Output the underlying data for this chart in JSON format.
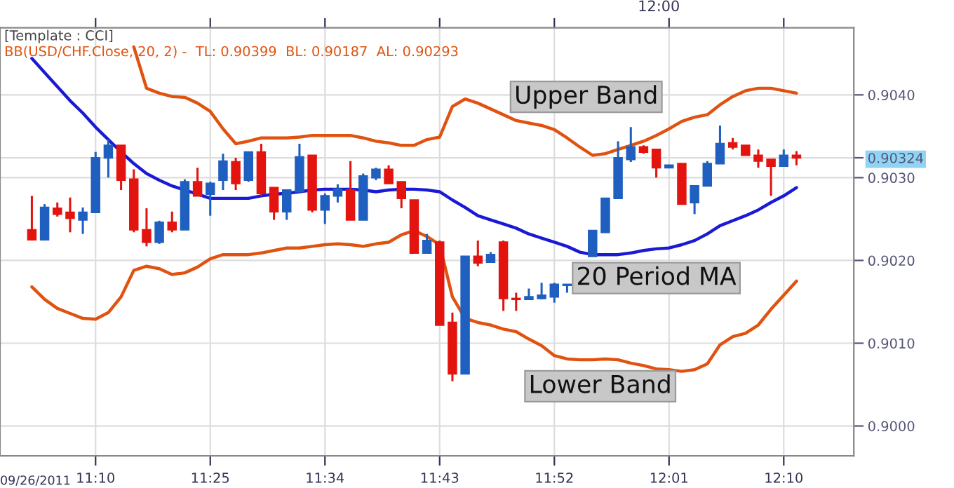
{
  "chart_data": {
    "type": "candlestick",
    "title": "[Template : CCI]",
    "subtitle": "BB(USD/CHF.Close, 20, 2) -  TL: 0.90399  BL: 0.90187  AL: 0.90293",
    "annotations": [
      "09/26/2011",
      "12:00"
    ],
    "categories": [
      null,
      null,
      null,
      null,
      null,
      "11:10",
      null,
      null,
      null,
      null,
      null,
      null,
      null,
      null,
      "11:25",
      null,
      null,
      null,
      null,
      null,
      null,
      null,
      null,
      "11:34",
      null,
      null,
      null,
      null,
      null,
      null,
      null,
      null,
      "11:43",
      null,
      null,
      null,
      null,
      null,
      null,
      null,
      null,
      "11:52",
      null,
      null,
      null,
      null,
      null,
      null,
      null,
      null,
      "12:01",
      null,
      null,
      null,
      null,
      null,
      null,
      null,
      null,
      "12:10",
      null
    ],
    "ohlc": [
      [
        0.90237,
        0.90278,
        0.90224,
        0.90225
      ],
      [
        0.90225,
        0.90268,
        0.90224,
        0.90264
      ],
      [
        0.90263,
        0.9027,
        0.90253,
        0.90256
      ],
      [
        0.90258,
        0.90276,
        0.90234,
        0.90251
      ],
      [
        0.90249,
        0.90264,
        0.90232,
        0.90258
      ],
      [
        0.90258,
        0.90331,
        0.90258,
        0.90324
      ],
      [
        0.90324,
        0.90346,
        0.903,
        0.90339
      ],
      [
        0.90339,
        0.90339,
        0.90285,
        0.90297
      ],
      [
        0.90298,
        0.9031,
        0.90234,
        0.90237
      ],
      [
        0.90237,
        0.90263,
        0.90217,
        0.90222
      ],
      [
        0.90222,
        0.90248,
        0.9022,
        0.90246
      ],
      [
        0.90246,
        0.90259,
        0.90234,
        0.90237
      ],
      [
        0.90237,
        0.90298,
        0.90237,
        0.90295
      ],
      [
        0.90295,
        0.90312,
        0.90278,
        0.90278
      ],
      [
        0.9028,
        0.90295,
        0.90254,
        0.90293
      ],
      [
        0.90297,
        0.90329,
        0.90285,
        0.9032
      ],
      [
        0.90319,
        0.90324,
        0.90285,
        0.90293
      ],
      [
        0.90297,
        0.90331,
        0.90295,
        0.90331
      ],
      [
        0.90331,
        0.90341,
        0.90278,
        0.90281
      ],
      [
        0.90288,
        0.90288,
        0.90249,
        0.90259
      ],
      [
        0.90259,
        0.90285,
        0.90249,
        0.90285
      ],
      [
        0.90283,
        0.90341,
        0.90283,
        0.90325
      ],
      [
        0.90327,
        0.90327,
        0.90258,
        0.90261
      ],
      [
        0.90261,
        0.90281,
        0.90244,
        0.90278
      ],
      [
        0.90278,
        0.90292,
        0.9027,
        0.90286
      ],
      [
        0.90285,
        0.9032,
        0.90249,
        0.90249
      ],
      [
        0.90249,
        0.90305,
        0.90249,
        0.90302
      ],
      [
        0.903,
        0.90312,
        0.90297,
        0.9031
      ],
      [
        0.9031,
        0.90315,
        0.90293,
        0.90293
      ],
      [
        0.90295,
        0.90295,
        0.90263,
        0.90275
      ],
      [
        0.90273,
        0.90273,
        0.90209,
        0.90209
      ],
      [
        0.90209,
        0.90232,
        0.90209,
        0.90224
      ],
      [
        0.90222,
        0.90224,
        0.90122,
        0.90122
      ],
      [
        0.90125,
        0.90137,
        0.90054,
        0.90063
      ],
      [
        0.90063,
        0.90205,
        0.90063,
        0.90205
      ],
      [
        0.90205,
        0.90224,
        0.90193,
        0.90197
      ],
      [
        0.90198,
        0.9021,
        0.90198,
        0.90207
      ],
      [
        0.90222,
        0.90224,
        0.90139,
        0.90154
      ],
      [
        0.90154,
        0.90161,
        0.90139,
        0.90153
      ],
      [
        0.90153,
        0.90166,
        0.90153,
        0.90156
      ],
      [
        0.90154,
        0.90173,
        0.90153,
        0.90158
      ],
      [
        0.90156,
        0.90173,
        0.90149,
        0.90171
      ],
      [
        0.9017,
        0.90171,
        0.90161,
        0.90171
      ],
      null,
      [
        0.90205,
        0.90236,
        0.90205,
        0.90236
      ],
      [
        0.90234,
        0.90275,
        0.90234,
        0.90275
      ],
      [
        0.90275,
        0.90344,
        0.90275,
        0.90324
      ],
      [
        0.90322,
        0.90361,
        0.90319,
        0.90337
      ],
      [
        0.90337,
        0.90339,
        0.90329,
        0.90331
      ],
      [
        0.90334,
        0.90334,
        0.903,
        0.90312
      ],
      [
        0.90312,
        0.90315,
        0.90312,
        0.90315
      ],
      [
        0.90317,
        0.90317,
        0.90268,
        0.90268
      ],
      [
        0.9027,
        0.9029,
        0.90256,
        0.9029
      ],
      [
        0.9029,
        0.9032,
        0.9029,
        0.90317
      ],
      [
        0.90317,
        0.90363,
        0.90317,
        0.90341
      ],
      [
        0.90342,
        0.90348,
        0.90334,
        0.90337
      ],
      [
        0.90339,
        0.90339,
        0.90327,
        0.90327
      ],
      [
        0.90327,
        0.90334,
        0.90312,
        0.9032
      ],
      [
        0.90322,
        0.90322,
        0.90278,
        0.90314
      ],
      [
        0.90314,
        0.90334,
        0.90314,
        0.90327
      ],
      [
        0.90327,
        0.90332,
        0.90315,
        0.90324
      ]
    ],
    "colors": [
      "#e3140f",
      "#1f5fbf",
      "#e3140f",
      "#e3140f",
      "#1f5fbf",
      "#1f5fbf",
      "#1f5fbf",
      "#e3140f",
      "#e3140f",
      "#e3140f",
      "#1f5fbf",
      "#e3140f",
      "#1f5fbf",
      "#e3140f",
      "#1f5fbf",
      "#1f5fbf",
      "#e3140f",
      "#1f5fbf",
      "#e3140f",
      "#e3140f",
      "#1f5fbf",
      "#1f5fbf",
      "#e3140f",
      "#1f5fbf",
      "#1f5fbf",
      "#e3140f",
      "#1f5fbf",
      "#1f5fbf",
      "#e3140f",
      "#e3140f",
      "#e3140f",
      "#1f5fbf",
      "#e3140f",
      "#e3140f",
      "#1f5fbf",
      "#e3140f",
      "#1f5fbf",
      "#e3140f",
      "#e3140f",
      "#1f5fbf",
      "#1f5fbf",
      "#1f5fbf",
      "#1f5fbf",
      null,
      "#1f5fbf",
      "#1f5fbf",
      "#1f5fbf",
      "#1f5fbf",
      "#e3140f",
      "#e3140f",
      "#1f5fbf",
      "#e3140f",
      "#1f5fbf",
      "#1f5fbf",
      "#1f5fbf",
      "#e3140f",
      "#e3140f",
      "#e3140f",
      "#e3140f",
      "#1f5fbf",
      "#e3140f"
    ],
    "series": [
      {
        "type": "line",
        "name": "Upper Band",
        "color": "#e0520f",
        "values": [
          null,
          null,
          null,
          null,
          null,
          null,
          null,
          null,
          0.90458,
          0.90408,
          0.90402,
          0.90398,
          0.90397,
          0.9039,
          0.9038,
          0.90359,
          0.90341,
          0.90344,
          0.90348,
          0.90348,
          0.90348,
          0.90349,
          0.90351,
          0.90351,
          0.90351,
          0.90351,
          0.90348,
          0.90344,
          0.90342,
          0.90339,
          0.90339,
          0.90346,
          0.90349,
          0.90386,
          0.90395,
          0.9039,
          0.90383,
          0.90376,
          0.90369,
          0.90366,
          0.90363,
          0.90358,
          0.90348,
          0.90337,
          0.90327,
          0.90329,
          0.90334,
          0.90339,
          0.90344,
          0.90351,
          0.90359,
          0.90368,
          0.90373,
          0.90376,
          0.90388,
          0.90398,
          0.90405,
          0.90408,
          0.90408,
          0.90405,
          0.90402
        ]
      },
      {
        "type": "line",
        "name": "20 Period MA",
        "color": "#1a1ad6",
        "values": [
          0.90444,
          0.90427,
          0.9041,
          0.90393,
          0.90378,
          0.90361,
          0.90346,
          0.90331,
          0.90317,
          0.90305,
          0.90297,
          0.9029,
          0.90285,
          0.9028,
          0.90275,
          0.90275,
          0.90275,
          0.90275,
          0.90278,
          0.9028,
          0.90281,
          0.90283,
          0.90285,
          0.90286,
          0.90286,
          0.90286,
          0.90285,
          0.90283,
          0.90285,
          0.90286,
          0.90286,
          0.90285,
          0.90283,
          0.90273,
          0.90264,
          0.90254,
          0.90249,
          0.90244,
          0.90239,
          0.90232,
          0.90227,
          0.90222,
          0.90217,
          0.9021,
          0.90207,
          0.90207,
          0.90207,
          0.90209,
          0.90212,
          0.90214,
          0.90215,
          0.90219,
          0.90224,
          0.90232,
          0.90242,
          0.90248,
          0.90254,
          0.90261,
          0.9027,
          0.90278,
          0.90288
        ]
      },
      {
        "type": "line",
        "name": "Lower Band",
        "color": "#e0520f",
        "values": [
          0.90168,
          0.90153,
          0.90142,
          0.90136,
          0.9013,
          0.90129,
          0.90137,
          0.90156,
          0.90188,
          0.90193,
          0.9019,
          0.90183,
          0.90185,
          0.90192,
          0.90202,
          0.90207,
          0.90207,
          0.90207,
          0.90209,
          0.90212,
          0.90215,
          0.90215,
          0.90217,
          0.90219,
          0.9022,
          0.90219,
          0.90217,
          0.9022,
          0.90222,
          0.90231,
          0.90236,
          0.90229,
          0.90219,
          0.90156,
          0.9013,
          0.90125,
          0.90122,
          0.90117,
          0.90114,
          0.90105,
          0.90097,
          0.90085,
          0.90081,
          0.9008,
          0.9008,
          0.90081,
          0.9008,
          0.90076,
          0.90073,
          0.90069,
          0.90068,
          0.90066,
          0.90068,
          0.90075,
          0.90098,
          0.90108,
          0.90112,
          0.90122,
          0.90141,
          0.90158,
          0.90175
        ]
      }
    ],
    "ylim": [
      0.89964,
      0.90481
    ],
    "yticks": [
      {
        "value": 0.9,
        "label": "0.9000"
      },
      {
        "value": 0.901,
        "label": "0.9010"
      },
      {
        "value": 0.902,
        "label": "0.9020"
      },
      {
        "value": 0.903,
        "label": "0.9030"
      },
      {
        "value": 0.904,
        "label": "0.9040"
      },
      {
        "value": 0.90324,
        "label": "0.90324"
      }
    ],
    "grid": true,
    "legend": false
  }
}
